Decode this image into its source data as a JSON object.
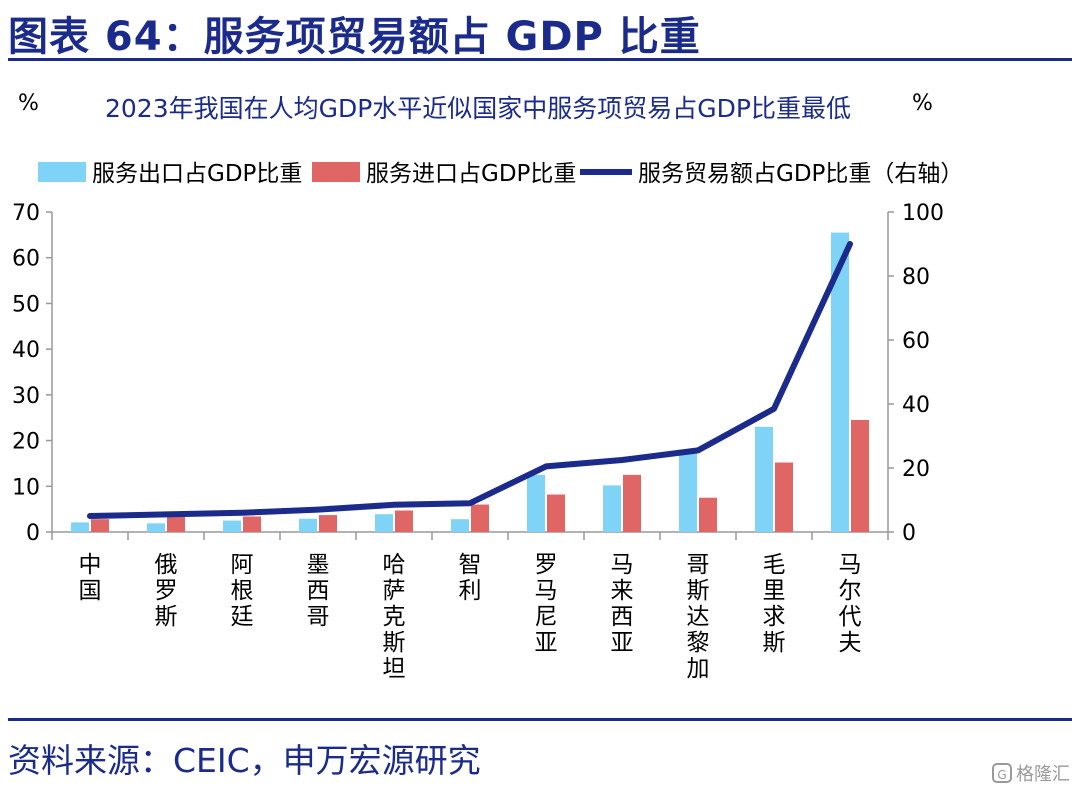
{
  "figure_title": "图表 64：服务项贸易额占 GDP 比重",
  "source_note": "资料来源：CEIC，申万宏源研究",
  "watermark": "格隆汇",
  "chart_data": {
    "type": "bar",
    "title": "2023年我国在人均GDP水平近似国家中服务项贸易占GDP比重最低",
    "y_left_unit": "%",
    "y_right_unit": "%",
    "ylim_left": [
      0,
      70
    ],
    "ylim_right": [
      0,
      100
    ],
    "yticks_left": [
      "0",
      "10",
      "20",
      "30",
      "40",
      "50",
      "60",
      "70"
    ],
    "yticks_right": [
      "0",
      "20",
      "40",
      "60",
      "80",
      "100"
    ],
    "grid": false,
    "legend_position": "top",
    "categories": [
      "中国",
      "俄罗斯",
      "阿根廷",
      "墨西哥",
      "哈萨克斯坦",
      "智利",
      "罗马尼亚",
      "马来西亚",
      "哥斯达黎加",
      "毛里求斯",
      "马尔代夫"
    ],
    "series": [
      {
        "name": "服务出口占GDP比重",
        "type": "bar",
        "axis": "left",
        "color": "#7fd3f7",
        "values": [
          2.1,
          1.9,
          2.5,
          2.9,
          3.9,
          2.8,
          12.5,
          10.2,
          18.0,
          23.0,
          65.5
        ]
      },
      {
        "name": "服务进口占GDP比重",
        "type": "bar",
        "axis": "left",
        "color": "#e06666",
        "values": [
          2.8,
          3.6,
          3.4,
          3.7,
          4.7,
          6.0,
          8.2,
          12.5,
          7.5,
          15.2,
          24.5
        ]
      },
      {
        "name": "服务贸易额占GDP比重（右轴）",
        "type": "line",
        "axis": "right",
        "color": "#1a2b8c",
        "values": [
          5,
          5.5,
          6,
          7,
          8.5,
          9,
          20.5,
          22.5,
          25.5,
          38.5,
          90
        ]
      }
    ]
  }
}
